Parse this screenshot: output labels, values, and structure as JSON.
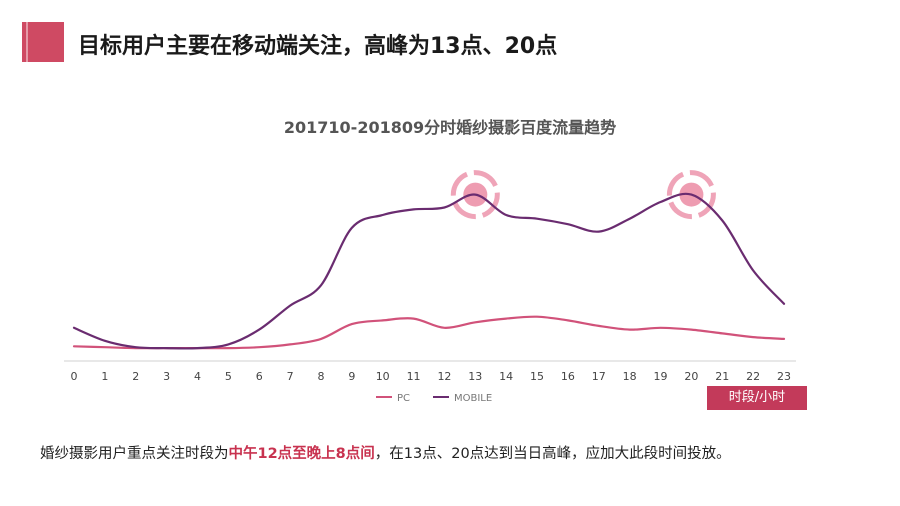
{
  "header": {
    "title": "目标用户主要在移动端关注，高峰为13点、20点"
  },
  "chart_data": {
    "type": "line",
    "title": "201710-201809分时婚纱摄影百度流量趋势",
    "x_unit_label": "时段/小时",
    "categories": [
      "0",
      "1",
      "2",
      "3",
      "4",
      "5",
      "6",
      "7",
      "8",
      "9",
      "10",
      "11",
      "12",
      "13",
      "14",
      "15",
      "16",
      "17",
      "18",
      "19",
      "20",
      "21",
      "22",
      "23"
    ],
    "series": [
      {
        "name": "PC",
        "color": "#d1527a",
        "values": [
          2,
          1.5,
          1,
          1,
          1,
          1,
          1.5,
          3,
          6,
          14,
          16,
          17,
          12,
          15,
          17,
          18,
          16,
          13,
          11,
          12,
          11,
          9,
          7,
          6
        ]
      },
      {
        "name": "MOBILE",
        "color": "#6a2c70",
        "values": [
          12,
          5,
          1.5,
          1,
          1,
          3,
          11,
          24,
          35,
          66,
          73,
          76,
          77,
          84,
          73,
          71,
          68,
          64,
          71,
          80,
          84,
          70,
          43,
          25
        ]
      }
    ],
    "peaks": [
      "13",
      "20"
    ],
    "ylim": [
      0,
      100
    ],
    "grid": false,
    "legend_position": "bottom",
    "colors": {
      "peak_marker": "#e25a7d",
      "unit_badge": "#c33a5a",
      "accent": "#cf4a63"
    }
  },
  "footnote": {
    "prefix": "婚纱摄影用户重点关注时段为",
    "highlight": "中午12点至晚上8点间",
    "suffix": "，在13点、20点达到当日高峰，应加大此段时间投放。"
  }
}
